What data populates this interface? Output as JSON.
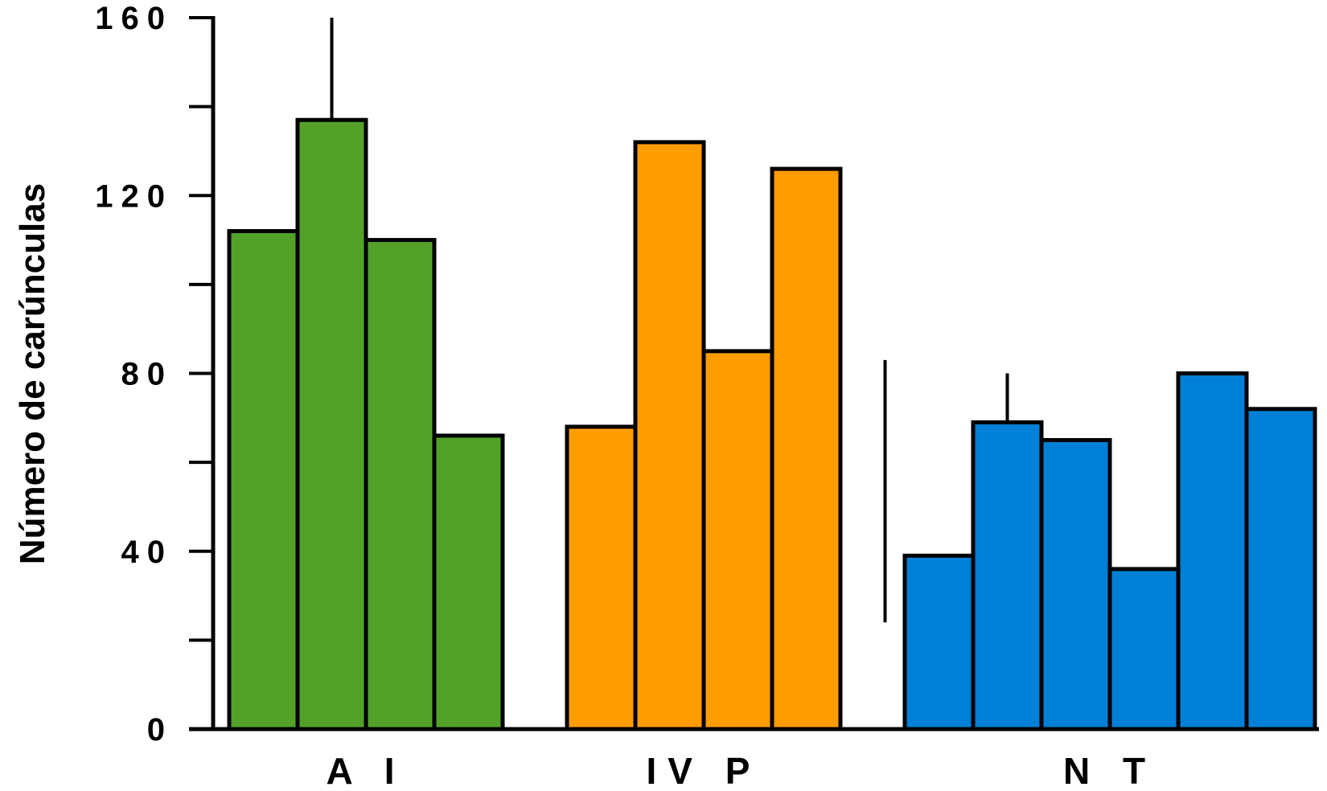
{
  "chart_data": {
    "type": "bar",
    "ylabel": "Número de carúnculas",
    "xlabel": "",
    "ylim": [
      0,
      160
    ],
    "y_ticks": [
      0,
      20,
      40,
      60,
      80,
      100,
      120,
      140,
      160
    ],
    "y_tick_labels": [
      "0",
      "",
      "40",
      "",
      "80",
      "",
      "120",
      "",
      "160"
    ],
    "grid": false,
    "groups": [
      {
        "label": "A I",
        "color": "#52a22a",
        "values": [
          112,
          137,
          110,
          66
        ]
      },
      {
        "label": "IV P",
        "color": "#ff9c00",
        "values": [
          68,
          132,
          85,
          126
        ]
      },
      {
        "label": "N T",
        "color": "#0080d6",
        "values": [
          39,
          69,
          65,
          36,
          80,
          72
        ]
      }
    ],
    "error_bars": [
      {
        "group": 0,
        "bar": 1,
        "low": null,
        "high": 160
      },
      {
        "group": 2,
        "bar": 0,
        "low": 24,
        "high": 83
      },
      {
        "group": 2,
        "bar": 1,
        "low": null,
        "high": 80
      }
    ]
  }
}
